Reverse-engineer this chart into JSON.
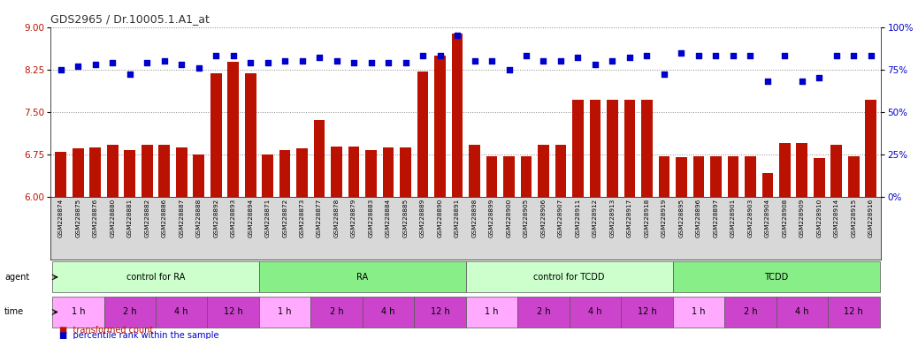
{
  "title": "GDS2965 / Dr.10005.1.A1_at",
  "sample_ids": [
    "GSM228874",
    "GSM228875",
    "GSM228876",
    "GSM228880",
    "GSM228881",
    "GSM228882",
    "GSM228886",
    "GSM228887",
    "GSM228888",
    "GSM228892",
    "GSM228893",
    "GSM228894",
    "GSM228871",
    "GSM228872",
    "GSM228873",
    "GSM228877",
    "GSM228878",
    "GSM228879",
    "GSM228883",
    "GSM228884",
    "GSM228885",
    "GSM228889",
    "GSM228890",
    "GSM228891",
    "GSM228898",
    "GSM228899",
    "GSM228900",
    "GSM228905",
    "GSM228906",
    "GSM228907",
    "GSM228911",
    "GSM228912",
    "GSM228913",
    "GSM228917",
    "GSM228918",
    "GSM228919",
    "GSM228895",
    "GSM228896",
    "GSM228897",
    "GSM228901",
    "GSM228903",
    "GSM228904",
    "GSM228908",
    "GSM228909",
    "GSM228910",
    "GSM228914",
    "GSM228915",
    "GSM228916"
  ],
  "bar_values": [
    6.8,
    6.85,
    6.87,
    6.92,
    6.82,
    6.92,
    6.92,
    6.87,
    6.75,
    8.18,
    8.38,
    8.18,
    6.75,
    6.82,
    6.85,
    7.35,
    6.88,
    6.88,
    6.82,
    6.87,
    6.87,
    8.22,
    8.5,
    8.88,
    6.92,
    6.72,
    6.72,
    6.72,
    6.92,
    6.92,
    7.72,
    7.72,
    7.72,
    7.72,
    7.72,
    6.72,
    6.7,
    6.72,
    6.72,
    6.72,
    6.72,
    6.42,
    6.95,
    6.95,
    6.68,
    6.92,
    6.72,
    7.72
  ],
  "dot_values": [
    75,
    77,
    78,
    79,
    72,
    79,
    80,
    78,
    76,
    83,
    83,
    79,
    79,
    80,
    80,
    82,
    80,
    79,
    79,
    79,
    79,
    83,
    83,
    95,
    80,
    80,
    75,
    83,
    80,
    80,
    82,
    78,
    80,
    82,
    83,
    72,
    85,
    83,
    83,
    83,
    83,
    68,
    83,
    68,
    70,
    83,
    83,
    83
  ],
  "agent_groups": [
    {
      "label": "control for RA",
      "start": 0,
      "end": 11,
      "color": "#ccffcc"
    },
    {
      "label": "RA",
      "start": 12,
      "end": 23,
      "color": "#88ee88"
    },
    {
      "label": "control for TCDD",
      "start": 24,
      "end": 35,
      "color": "#ccffcc"
    },
    {
      "label": "TCDD",
      "start": 36,
      "end": 47,
      "color": "#88ee88"
    }
  ],
  "time_groups": [
    {
      "label": "1 h",
      "start": 0,
      "end": 2,
      "light": true
    },
    {
      "label": "2 h",
      "start": 3,
      "end": 5,
      "light": false
    },
    {
      "label": "4 h",
      "start": 6,
      "end": 8,
      "light": false
    },
    {
      "label": "12 h",
      "start": 9,
      "end": 11,
      "light": false
    },
    {
      "label": "1 h",
      "start": 12,
      "end": 14,
      "light": true
    },
    {
      "label": "2 h",
      "start": 15,
      "end": 17,
      "light": false
    },
    {
      "label": "4 h",
      "start": 18,
      "end": 20,
      "light": false
    },
    {
      "label": "12 h",
      "start": 21,
      "end": 23,
      "light": false
    },
    {
      "label": "1 h",
      "start": 24,
      "end": 26,
      "light": true
    },
    {
      "label": "2 h",
      "start": 27,
      "end": 29,
      "light": false
    },
    {
      "label": "4 h",
      "start": 30,
      "end": 32,
      "light": false
    },
    {
      "label": "12 h",
      "start": 33,
      "end": 35,
      "light": false
    },
    {
      "label": "1 h",
      "start": 36,
      "end": 38,
      "light": true
    },
    {
      "label": "2 h",
      "start": 39,
      "end": 41,
      "light": false
    },
    {
      "label": "4 h",
      "start": 42,
      "end": 44,
      "light": false
    },
    {
      "label": "12 h",
      "start": 45,
      "end": 47,
      "light": false
    }
  ],
  "ylim_left": [
    6.0,
    9.0
  ],
  "ylim_right": [
    0,
    100
  ],
  "yticks_left": [
    6.0,
    6.75,
    7.5,
    8.25,
    9.0
  ],
  "yticks_right": [
    0,
    25,
    50,
    75,
    100
  ],
  "bar_color": "#bb1100",
  "dot_color": "#0000cc",
  "chart_bg": "#ffffff",
  "time_color_light": "#ffaaff",
  "time_color_dark": "#cc44cc",
  "agent_color_light": "#ccffcc",
  "agent_color_dark": "#66dd66"
}
